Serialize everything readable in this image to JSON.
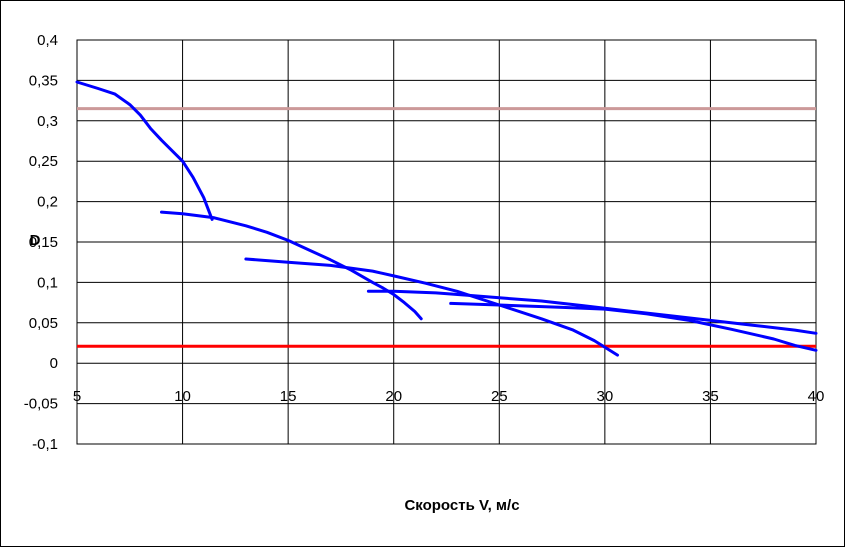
{
  "chart_data": {
    "type": "line",
    "title": "",
    "xlabel": "Скорость V, м/с",
    "ylabel": "D",
    "xlim": [
      5,
      40
    ],
    "ylim": [
      -0.1,
      0.4
    ],
    "x_ticks": [
      5,
      10,
      15,
      20,
      25,
      30,
      35,
      40
    ],
    "x_tick_labels": [
      "5",
      "10",
      "15",
      "20",
      "25",
      "30",
      "35",
      "40"
    ],
    "y_ticks": [
      -0.1,
      -0.05,
      0,
      0.05,
      0.1,
      0.15,
      0.2,
      0.25,
      0.3,
      0.35,
      0.4
    ],
    "y_tick_labels": [
      "-0,1",
      "-0,05",
      "0",
      "0,05",
      "0,1",
      "0,15",
      "0,2",
      "0,25",
      "0,3",
      "0,35",
      "0,4"
    ],
    "grid": true,
    "legend": "none",
    "colors": {
      "curve": "#0000ff",
      "upper_line": "#cc9999",
      "lower_line": "#ff0000",
      "grid": "#000000"
    },
    "series": [
      {
        "color": "#0000ff",
        "points": [
          [
            5,
            0.348
          ],
          [
            6,
            0.34
          ],
          [
            6.8,
            0.333
          ],
          [
            7.5,
            0.32
          ],
          [
            8,
            0.307
          ],
          [
            8.5,
            0.29
          ],
          [
            9,
            0.276
          ],
          [
            10,
            0.25
          ],
          [
            10.5,
            0.23
          ],
          [
            11,
            0.205
          ],
          [
            11.4,
            0.178
          ]
        ]
      },
      {
        "color": "#0000ff",
        "points": [
          [
            9,
            0.187
          ],
          [
            10,
            0.185
          ],
          [
            11.5,
            0.18
          ],
          [
            13,
            0.17
          ],
          [
            14,
            0.162
          ],
          [
            15,
            0.152
          ],
          [
            16,
            0.14
          ],
          [
            17,
            0.128
          ],
          [
            18,
            0.115
          ],
          [
            19,
            0.1
          ],
          [
            19.5,
            0.093
          ],
          [
            20,
            0.085
          ],
          [
            20.5,
            0.075
          ],
          [
            21,
            0.064
          ],
          [
            21.3,
            0.055
          ]
        ]
      },
      {
        "color": "#0000ff",
        "points": [
          [
            13,
            0.129
          ],
          [
            15,
            0.125
          ],
          [
            17,
            0.121
          ],
          [
            19,
            0.114
          ],
          [
            20,
            0.108
          ],
          [
            21.5,
            0.099
          ],
          [
            23,
            0.089
          ],
          [
            25,
            0.072
          ],
          [
            27,
            0.055
          ],
          [
            28.5,
            0.041
          ],
          [
            29.5,
            0.028
          ],
          [
            30.6,
            0.01
          ]
        ]
      },
      {
        "color": "#0000ff",
        "points": [
          [
            18.8,
            0.089
          ],
          [
            20,
            0.089
          ],
          [
            22,
            0.087
          ],
          [
            23.5,
            0.084
          ],
          [
            25,
            0.081
          ],
          [
            27,
            0.077
          ],
          [
            29,
            0.071
          ],
          [
            31,
            0.065
          ],
          [
            33,
            0.059
          ],
          [
            35,
            0.053
          ],
          [
            37,
            0.047
          ],
          [
            39,
            0.041
          ],
          [
            40,
            0.037
          ]
        ]
      },
      {
        "color": "#0000ff",
        "points": [
          [
            22.7,
            0.074
          ],
          [
            25,
            0.072
          ],
          [
            28,
            0.069
          ],
          [
            30,
            0.067
          ],
          [
            32,
            0.061
          ],
          [
            34,
            0.053
          ],
          [
            36,
            0.042
          ],
          [
            38,
            0.03
          ],
          [
            39,
            0.022
          ],
          [
            40,
            0.016
          ]
        ]
      }
    ],
    "horizontal_lines": [
      {
        "y": 0.315,
        "color": "#cc9999"
      },
      {
        "y": 0.021,
        "color": "#ff0000"
      }
    ]
  }
}
